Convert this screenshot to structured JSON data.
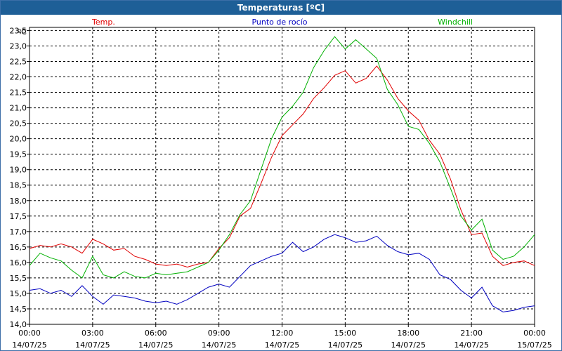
{
  "window": {
    "title": "Temperaturas [ºC]"
  },
  "chart_data": {
    "type": "line",
    "title": "Temperaturas [ºC]",
    "unit_label": "ºC",
    "ylim": [
      14.0,
      23.6
    ],
    "yticks": [
      "14,0",
      "14,5",
      "15,0",
      "15,5",
      "16,0",
      "16,5",
      "17,0",
      "17,5",
      "18,0",
      "18,5",
      "19,0",
      "19,5",
      "20,0",
      "20,5",
      "21,0",
      "21,5",
      "22,0",
      "22,5",
      "23,0",
      "23,5"
    ],
    "ytick_values": [
      14.0,
      14.5,
      15.0,
      15.5,
      16.0,
      16.5,
      17.0,
      17.5,
      18.0,
      18.5,
      19.0,
      19.5,
      20.0,
      20.5,
      21.0,
      21.5,
      22.0,
      22.5,
      23.0,
      23.5
    ],
    "xlim_hours": [
      0,
      24
    ],
    "xticks": [
      {
        "time": "00:00",
        "date": "14/07/25"
      },
      {
        "time": "03:00",
        "date": "14/07/25"
      },
      {
        "time": "06:00",
        "date": "14/07/25"
      },
      {
        "time": "09:00",
        "date": "14/07/25"
      },
      {
        "time": "12:00",
        "date": "14/07/25"
      },
      {
        "time": "15:00",
        "date": "14/07/25"
      },
      {
        "time": "18:00",
        "date": "14/07/25"
      },
      {
        "time": "21:00",
        "date": "14/07/25"
      },
      {
        "time": "00:00",
        "date": "15/07/25"
      }
    ],
    "grid": true,
    "legend_position": "top",
    "x": [
      0,
      0.5,
      1,
      1.5,
      2,
      2.5,
      3,
      3.5,
      4,
      4.5,
      5,
      5.5,
      6,
      6.5,
      7,
      7.5,
      8,
      8.5,
      9,
      9.5,
      10,
      10.5,
      11,
      11.5,
      12,
      12.5,
      13,
      13.5,
      14,
      14.5,
      15,
      15.5,
      16,
      16.5,
      17,
      17.5,
      18,
      18.5,
      19,
      19.5,
      20,
      20.5,
      21,
      21.5,
      22,
      22.5,
      23,
      23.5,
      24
    ],
    "series": [
      {
        "name": "Temp.",
        "color": "#e00000",
        "values": [
          16.45,
          16.55,
          16.5,
          16.6,
          16.5,
          16.3,
          16.75,
          16.6,
          16.4,
          16.45,
          16.2,
          16.1,
          15.95,
          15.9,
          15.95,
          15.85,
          15.95,
          16.0,
          16.45,
          16.8,
          17.5,
          17.75,
          18.55,
          19.4,
          20.1,
          20.45,
          20.8,
          21.3,
          21.65,
          22.05,
          22.2,
          21.8,
          21.95,
          22.35,
          21.9,
          21.3,
          20.9,
          20.6,
          19.95,
          19.5,
          18.7,
          17.7,
          16.9,
          16.95,
          16.2,
          15.9,
          16.0,
          16.05,
          15.9
        ]
      },
      {
        "name": "Punto de rocío",
        "color": "#0000c0",
        "values": [
          15.1,
          15.15,
          15.0,
          15.1,
          14.9,
          15.25,
          14.9,
          14.65,
          14.95,
          14.9,
          14.85,
          14.75,
          14.7,
          14.75,
          14.65,
          14.8,
          15.0,
          15.2,
          15.3,
          15.2,
          15.55,
          15.9,
          16.05,
          16.2,
          16.3,
          16.65,
          16.35,
          16.5,
          16.75,
          16.9,
          16.8,
          16.65,
          16.7,
          16.85,
          16.55,
          16.35,
          16.25,
          16.3,
          16.1,
          15.6,
          15.45,
          15.1,
          14.85,
          15.2,
          14.6,
          14.4,
          14.45,
          14.55,
          14.6
        ]
      },
      {
        "name": "Windchill",
        "color": "#00b000",
        "values": [
          15.9,
          16.3,
          16.15,
          16.05,
          15.75,
          15.5,
          16.2,
          15.6,
          15.5,
          15.7,
          15.55,
          15.5,
          15.65,
          15.6,
          15.65,
          15.7,
          15.85,
          16.0,
          16.4,
          16.9,
          17.55,
          18.0,
          19.0,
          20.0,
          20.7,
          21.05,
          21.5,
          22.3,
          22.85,
          23.3,
          22.9,
          23.2,
          22.9,
          22.6,
          21.6,
          21.1,
          20.4,
          20.3,
          19.85,
          19.25,
          18.4,
          17.5,
          17.05,
          17.4,
          16.4,
          16.1,
          16.2,
          16.5,
          16.9
        ]
      }
    ]
  }
}
